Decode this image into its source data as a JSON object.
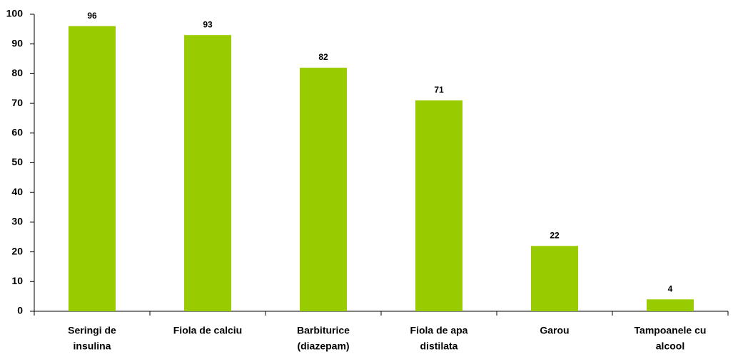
{
  "chart_data": {
    "type": "bar",
    "categories": [
      [
        "Seringi de",
        "insulina"
      ],
      [
        "Fiola de calciu"
      ],
      [
        "Barbiturice",
        "(diazepam)"
      ],
      [
        "Fiola de apa",
        "distilata"
      ],
      [
        "Garou"
      ],
      [
        "Tampoanele cu",
        "alcool"
      ]
    ],
    "values": [
      96,
      93,
      82,
      71,
      22,
      4
    ],
    "color": "#99cc00",
    "ylim": [
      0,
      100
    ],
    "yticks": [
      0,
      10,
      20,
      30,
      40,
      50,
      60,
      70,
      80,
      90,
      100
    ],
    "grid": false
  }
}
